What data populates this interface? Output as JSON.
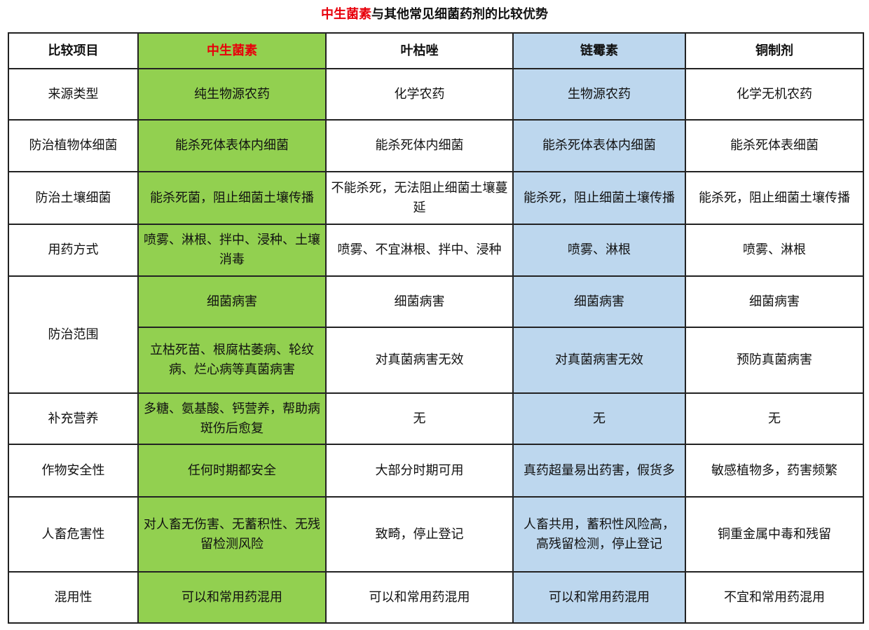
{
  "title": {
    "highlight": "中生菌素",
    "rest": "与其他常见细菌药剂的比较优势"
  },
  "colors": {
    "highlight_column": "#92d050",
    "secondary_column": "#bdd7ee",
    "title_highlight": "#e8000b"
  },
  "table": {
    "headers": [
      "比较项目",
      "中生菌素",
      "叶枯唑",
      "链霉素",
      "铜制剂"
    ],
    "rows": [
      {
        "label": "来源类型",
        "cells": [
          "纯生物源农药",
          "化学农药",
          "生物源农药",
          "化学无机农药"
        ]
      },
      {
        "label": "防治植物体细菌",
        "cells": [
          "能杀死体表体内细菌",
          "能杀死体内细菌",
          "能杀死体表体内细菌",
          "能杀死体表细菌"
        ]
      },
      {
        "label": "防治土壤细菌",
        "cells": [
          "能杀死菌，阻止细菌土壤传播",
          "不能杀死，无法阻止细菌土壤蔓延",
          "能杀死，阻止细菌土壤传播",
          "能杀死，阻止细菌土壤传播"
        ]
      },
      {
        "label": "用药方式",
        "cells": [
          "喷雾、淋根、拌中、浸种、土壤消毒",
          "喷雾、不宜淋根、拌中、浸种",
          "喷雾、淋根",
          "喷雾、淋根"
        ]
      },
      {
        "label": "防治范围",
        "cells": [
          "细菌病害",
          "细菌病害",
          "细菌病害",
          "细菌病害"
        ],
        "cells2": [
          "立枯死苗、根腐枯萎病、轮纹病、烂心病等真菌病害",
          "对真菌病害无效",
          "对真菌病害无效",
          "预防真菌病害"
        ]
      },
      {
        "label": "补充营养",
        "cells": [
          "多糖、氨基酸、钙营养，帮助病斑伤后愈复",
          "无",
          "无",
          "无"
        ]
      },
      {
        "label": "作物安全性",
        "cells": [
          "任何时期都安全",
          "大部分时期可用",
          "真药超量易出药害，假货多",
          "敏感植物多，药害频繁"
        ]
      },
      {
        "label": "人畜危害性",
        "cells": [
          "对人畜无伤害、无蓄积性、无残留检测风险",
          "致畸，停止登记",
          "人畜共用，蓄积性风险高，高残留检测，停止登记",
          "铜重金属中毒和残留"
        ]
      },
      {
        "label": "混用性",
        "cells": [
          "可以和常用药混用",
          "可以和常用药混用",
          "可以和常用药混用",
          "不宜和常用药混用"
        ]
      }
    ]
  }
}
